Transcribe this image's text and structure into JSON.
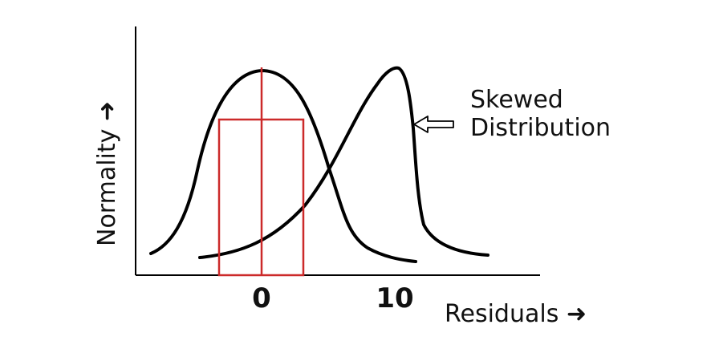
{
  "diagram": {
    "x_axis": {
      "label": "Residuals ➜",
      "ticks": [
        "0",
        "10"
      ]
    },
    "y_axis": {
      "label": "Normality ➜"
    },
    "annotation": {
      "line1": "Skewed",
      "line2": "Distribution"
    },
    "colors": {
      "curve": "#000000",
      "highlight": "#cc2a2a",
      "text": "#111111"
    }
  }
}
